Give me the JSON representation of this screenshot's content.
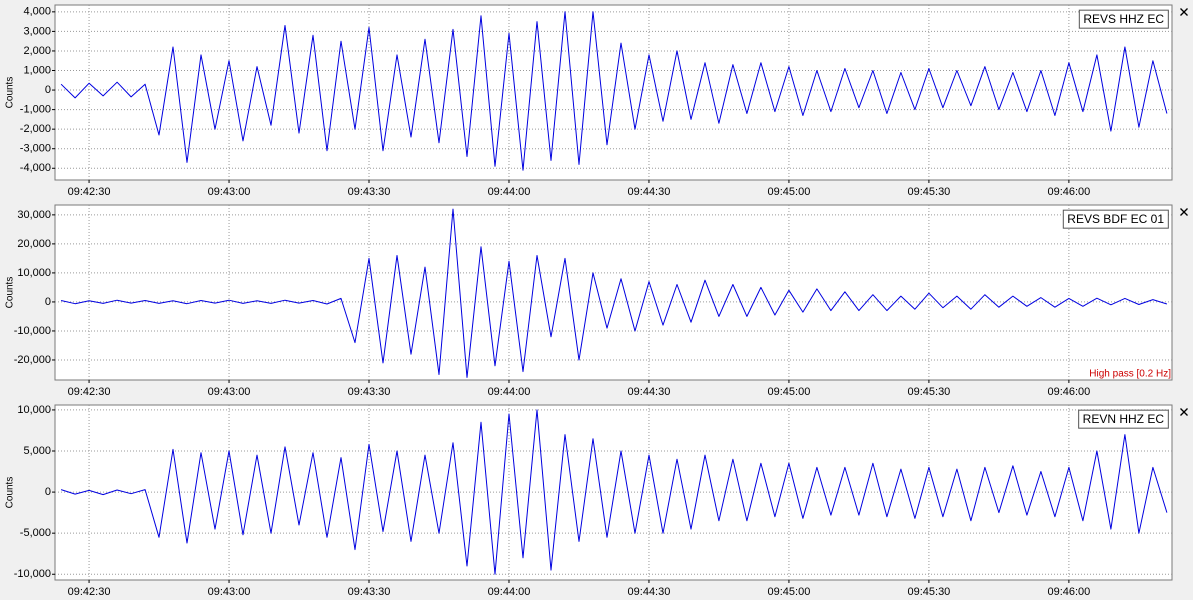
{
  "chart_data": [
    {
      "type": "line",
      "y_label": "Counts",
      "x": [
        "09:42:24",
        "09:42:27",
        "09:42:30",
        "09:42:33",
        "09:42:36",
        "09:42:39",
        "09:42:42",
        "09:42:45",
        "09:42:48",
        "09:42:51",
        "09:42:54",
        "09:42:57",
        "09:43:00",
        "09:43:03",
        "09:43:06",
        "09:43:09",
        "09:43:12",
        "09:43:15",
        "09:43:18",
        "09:43:21",
        "09:43:24",
        "09:43:27",
        "09:43:30",
        "09:43:33",
        "09:43:36",
        "09:43:39",
        "09:43:42",
        "09:43:45",
        "09:43:48",
        "09:43:51",
        "09:43:54",
        "09:43:57",
        "09:44:00",
        "09:44:03",
        "09:44:06",
        "09:44:09",
        "09:44:12",
        "09:44:15",
        "09:44:18",
        "09:44:21",
        "09:44:24",
        "09:44:27",
        "09:44:30",
        "09:44:33",
        "09:44:36",
        "09:44:39",
        "09:44:42",
        "09:44:45",
        "09:44:48",
        "09:44:51",
        "09:44:54",
        "09:44:57",
        "09:45:00",
        "09:45:03",
        "09:45:06",
        "09:45:09",
        "09:45:12",
        "09:45:15",
        "09:45:18",
        "09:45:21",
        "09:45:24",
        "09:45:27",
        "09:45:30",
        "09:45:33",
        "09:45:36",
        "09:45:39",
        "09:45:42",
        "09:45:45",
        "09:45:48",
        "09:45:51",
        "09:45:54",
        "09:45:57",
        "09:46:00",
        "09:46:03",
        "09:46:06",
        "09:46:09",
        "09:46:12",
        "09:46:15",
        "09:46:18",
        "09:46:21"
      ],
      "series": [
        {
          "name": "REVS HHZ EC",
          "color": "#0000e0",
          "values": [
            300,
            -400,
            350,
            -300,
            400,
            -350,
            300,
            -2300,
            2200,
            -3700,
            1800,
            -2000,
            1500,
            -2600,
            1200,
            -1800,
            3300,
            -2200,
            2800,
            -3100,
            2500,
            -2000,
            3200,
            -3100,
            1800,
            -2400,
            2600,
            -2700,
            3100,
            -3400,
            3800,
            -3900,
            2900,
            -4100,
            3500,
            -3600,
            4000,
            -3800,
            4000,
            -2800,
            2400,
            -2000,
            1800,
            -1600,
            2000,
            -1500,
            1400,
            -1700,
            1300,
            -1200,
            1400,
            -1100,
            1200,
            -1300,
            1000,
            -1100,
            1100,
            -900,
            1000,
            -1200,
            900,
            -1000,
            1100,
            -900,
            1000,
            -800,
            1200,
            -1000,
            900,
            -1100,
            1000,
            -1300,
            1400,
            -1100,
            1800,
            -2100,
            2200,
            -1900,
            1500,
            -1200
          ]
        }
      ],
      "xlim": [
        "09:42:22.7",
        "09:46:22.1"
      ],
      "xticks": [
        "09:42:30",
        "09:43:00",
        "09:43:30",
        "09:44:00",
        "09:44:30",
        "09:45:00",
        "09:45:30",
        "09:46:00"
      ],
      "ylim": [
        -4600,
        4350
      ],
      "yticks": [
        {
          "value": -4000,
          "label": "-4,000"
        },
        {
          "value": -3000,
          "label": "-3,000"
        },
        {
          "value": -2000,
          "label": "-2,000"
        },
        {
          "value": -1000,
          "label": "-1,000"
        },
        0,
        {
          "value": 1000,
          "label": "1,000"
        },
        {
          "value": 2000,
          "label": "2,000"
        },
        {
          "value": 3000,
          "label": "3,000"
        },
        {
          "value": 4000,
          "label": "4,000"
        }
      ],
      "grid": true
    },
    {
      "type": "line",
      "y_label": "Counts",
      "annotation": "High pass [0.2 Hz]",
      "annotation_color": "#cc0000",
      "x": [
        "09:42:24",
        "09:42:27",
        "09:42:30",
        "09:42:33",
        "09:42:36",
        "09:42:39",
        "09:42:42",
        "09:42:45",
        "09:42:48",
        "09:42:51",
        "09:42:54",
        "09:42:57",
        "09:43:00",
        "09:43:03",
        "09:43:06",
        "09:43:09",
        "09:43:12",
        "09:43:15",
        "09:43:18",
        "09:43:21",
        "09:43:24",
        "09:43:27",
        "09:43:30",
        "09:43:33",
        "09:43:36",
        "09:43:39",
        "09:43:42",
        "09:43:45",
        "09:43:48",
        "09:43:51",
        "09:43:54",
        "09:43:57",
        "09:44:00",
        "09:44:03",
        "09:44:06",
        "09:44:09",
        "09:44:12",
        "09:44:15",
        "09:44:18",
        "09:44:21",
        "09:44:24",
        "09:44:27",
        "09:44:30",
        "09:44:33",
        "09:44:36",
        "09:44:39",
        "09:44:42",
        "09:44:45",
        "09:44:48",
        "09:44:51",
        "09:44:54",
        "09:44:57",
        "09:45:00",
        "09:45:03",
        "09:45:06",
        "09:45:09",
        "09:45:12",
        "09:45:15",
        "09:45:18",
        "09:45:21",
        "09:45:24",
        "09:45:27",
        "09:45:30",
        "09:45:33",
        "09:45:36",
        "09:45:39",
        "09:45:42",
        "09:45:45",
        "09:45:48",
        "09:45:51",
        "09:45:54",
        "09:45:57",
        "09:46:00",
        "09:46:03",
        "09:46:06",
        "09:46:09",
        "09:46:12",
        "09:46:15",
        "09:46:18",
        "09:46:21"
      ],
      "series": [
        {
          "name": "REVS BDF EC 01",
          "color": "#0000e0",
          "values": [
            500,
            -600,
            400,
            -500,
            600,
            -400,
            500,
            -500,
            400,
            -600,
            500,
            -400,
            600,
            -500,
            400,
            -500,
            600,
            -400,
            500,
            -700,
            1200,
            -14000,
            15000,
            -21000,
            16000,
            -18000,
            12000,
            -25000,
            32000,
            -26000,
            19000,
            -22000,
            14000,
            -24000,
            16000,
            -12000,
            15000,
            -20000,
            10000,
            -9000,
            8000,
            -10000,
            7000,
            -8000,
            6000,
            -7000,
            7500,
            -5000,
            6000,
            -5000,
            5000,
            -4500,
            4000,
            -3500,
            4500,
            -3000,
            3500,
            -3000,
            2500,
            -3000,
            2000,
            -2500,
            3000,
            -2000,
            2000,
            -2500,
            2500,
            -1800,
            2000,
            -1500,
            1500,
            -1800,
            1200,
            -1500,
            1300,
            -1000,
            1200,
            -900,
            800,
            -700
          ]
        }
      ],
      "xlim": [
        "09:42:22.7",
        "09:46:22.1"
      ],
      "xticks": [
        "09:42:30",
        "09:43:00",
        "09:43:30",
        "09:44:00",
        "09:44:30",
        "09:45:00",
        "09:45:30",
        "09:46:00"
      ],
      "ylim": [
        -26900,
        33400
      ],
      "yticks": [
        {
          "value": -20000,
          "label": "-20,000"
        },
        {
          "value": -10000,
          "label": "-10,000"
        },
        0,
        {
          "value": 10000,
          "label": "10,000"
        },
        {
          "value": 20000,
          "label": "20,000"
        },
        {
          "value": 30000,
          "label": "30,000"
        }
      ],
      "grid": true
    },
    {
      "type": "line",
      "y_label": "Counts",
      "x": [
        "09:42:24",
        "09:42:27",
        "09:42:30",
        "09:42:33",
        "09:42:36",
        "09:42:39",
        "09:42:42",
        "09:42:45",
        "09:42:48",
        "09:42:51",
        "09:42:54",
        "09:42:57",
        "09:43:00",
        "09:43:03",
        "09:43:06",
        "09:43:09",
        "09:43:12",
        "09:43:15",
        "09:43:18",
        "09:43:21",
        "09:43:24",
        "09:43:27",
        "09:43:30",
        "09:43:33",
        "09:43:36",
        "09:43:39",
        "09:43:42",
        "09:43:45",
        "09:43:48",
        "09:43:51",
        "09:43:54",
        "09:43:57",
        "09:44:00",
        "09:44:03",
        "09:44:06",
        "09:44:09",
        "09:44:12",
        "09:44:15",
        "09:44:18",
        "09:44:21",
        "09:44:24",
        "09:44:27",
        "09:44:30",
        "09:44:33",
        "09:44:36",
        "09:44:39",
        "09:44:42",
        "09:44:45",
        "09:44:48",
        "09:44:51",
        "09:44:54",
        "09:44:57",
        "09:45:00",
        "09:45:03",
        "09:45:06",
        "09:45:09",
        "09:45:12",
        "09:45:15",
        "09:45:18",
        "09:45:21",
        "09:45:24",
        "09:45:27",
        "09:45:30",
        "09:45:33",
        "09:45:36",
        "09:45:39",
        "09:45:42",
        "09:45:45",
        "09:45:48",
        "09:45:51",
        "09:45:54",
        "09:45:57",
        "09:46:00",
        "09:46:03",
        "09:46:06",
        "09:46:09",
        "09:46:12",
        "09:46:15",
        "09:46:18",
        "09:46:21"
      ],
      "series": [
        {
          "name": "REVN HHZ EC",
          "color": "#0000e0",
          "values": [
            300,
            -250,
            200,
            -300,
            250,
            -200,
            300,
            -5500,
            5200,
            -6200,
            4800,
            -4500,
            5000,
            -5200,
            4500,
            -5000,
            5500,
            -4000,
            4800,
            -5500,
            4200,
            -7000,
            5800,
            -4800,
            5000,
            -6000,
            4500,
            -5000,
            6000,
            -9000,
            8500,
            -10000,
            9500,
            -8000,
            10000,
            -9500,
            7000,
            -6000,
            6500,
            -5500,
            5000,
            -5000,
            4500,
            -5000,
            4000,
            -4500,
            4500,
            -3500,
            4000,
            -3500,
            3500,
            -3000,
            3500,
            -3200,
            3000,
            -2800,
            3000,
            -2800,
            3500,
            -3000,
            2800,
            -3200,
            3000,
            -3000,
            2800,
            -3500,
            3000,
            -2500,
            3200,
            -2800,
            2500,
            -3000,
            3000,
            -3500,
            5000,
            -4500,
            7000,
            -5000,
            3000,
            -2500
          ]
        }
      ],
      "xlim": [
        "09:42:22.7",
        "09:46:22.1"
      ],
      "xticks": [
        "09:42:30",
        "09:43:00",
        "09:43:30",
        "09:44:00",
        "09:44:30",
        "09:45:00",
        "09:45:30",
        "09:46:00"
      ],
      "ylim": [
        -10700,
        10600
      ],
      "yticks": [
        {
          "value": -10000,
          "label": "-10,000"
        },
        {
          "value": -5000,
          "label": "-5,000"
        },
        0,
        {
          "value": 5000,
          "label": "5,000"
        },
        {
          "value": 10000,
          "label": "10,000"
        }
      ],
      "grid": true
    }
  ]
}
